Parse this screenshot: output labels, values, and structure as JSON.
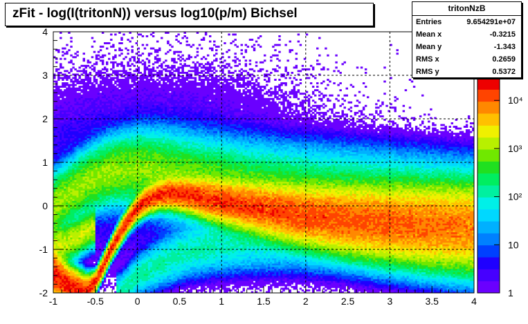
{
  "chart_data": {
    "type": "heatmap",
    "title": "zFit - log(I(tritonN)) versus log10(p/m) Bichsel",
    "xlabel": "",
    "ylabel": "",
    "xlim": [
      -1,
      4
    ],
    "ylim": [
      -2,
      4
    ],
    "x_ticks": [
      "-1",
      "-0.5",
      "0",
      "0.5",
      "1",
      "1.5",
      "2",
      "2.5",
      "3",
      "3.5",
      "4"
    ],
    "y_ticks": [
      "-2",
      "-1",
      "0",
      "1",
      "2",
      "3",
      "4"
    ],
    "grid": true,
    "z_scale": "log",
    "z_range": [
      1,
      30000
    ],
    "colorbar_ticks": [
      {
        "value": 1,
        "label": "1"
      },
      {
        "value": 10,
        "label": "10"
      },
      {
        "value": 100,
        "label": "10²"
      },
      {
        "value": 1000,
        "label": "10³"
      },
      {
        "value": 10000,
        "label": "10⁴"
      }
    ],
    "palette": [
      "#6a00ff",
      "#4600ff",
      "#1f00ff",
      "#0040ff",
      "#0080ff",
      "#00b0ff",
      "#00d8ff",
      "#00f0e8",
      "#00f0a0",
      "#00ee60",
      "#20e020",
      "#70e800",
      "#b8f000",
      "#f0f000",
      "#ffc000",
      "#ff8800",
      "#ff4400",
      "#ee0000"
    ],
    "bands": [
      {
        "name": "main",
        "points": [
          [
            -1.0,
            -1.55,
            0.22
          ],
          [
            -0.8,
            -1.85,
            0.18
          ],
          [
            -0.6,
            -2.0,
            0.15
          ],
          [
            -0.5,
            -1.75,
            0.09
          ],
          [
            -0.4,
            -1.35,
            0.09
          ],
          [
            -0.3,
            -0.95,
            0.09
          ],
          [
            -0.2,
            -0.6,
            0.1
          ],
          [
            -0.1,
            -0.3,
            0.1
          ],
          [
            0.0,
            -0.05,
            0.11
          ],
          [
            0.1,
            0.12,
            0.12
          ],
          [
            0.25,
            0.25,
            0.13
          ],
          [
            0.4,
            0.3,
            0.14
          ],
          [
            0.6,
            0.26,
            0.16
          ],
          [
            0.8,
            0.18,
            0.18
          ],
          [
            1.0,
            0.1,
            0.2
          ],
          [
            1.3,
            0.0,
            0.22
          ],
          [
            1.6,
            -0.1,
            0.25
          ],
          [
            2.0,
            -0.22,
            0.28
          ],
          [
            2.5,
            -0.32,
            0.32
          ],
          [
            3.0,
            -0.4,
            0.35
          ],
          [
            3.5,
            -0.45,
            0.38
          ],
          [
            4.0,
            -0.5,
            0.4
          ]
        ],
        "amp": 4.3
      },
      {
        "name": "upper",
        "points": [
          [
            -1.0,
            0.0,
            0.3
          ],
          [
            -0.6,
            0.55,
            0.3
          ],
          [
            -0.3,
            0.8,
            0.32
          ],
          [
            0.0,
            0.85,
            0.35
          ],
          [
            0.3,
            0.75,
            0.38
          ],
          [
            0.6,
            0.6,
            0.4
          ],
          [
            1.0,
            0.45,
            0.42
          ],
          [
            1.5,
            0.25,
            0.45
          ],
          [
            2.0,
            0.1,
            0.48
          ],
          [
            3.0,
            -0.1,
            0.52
          ],
          [
            4.0,
            -0.3,
            0.55
          ]
        ],
        "amp": 3.0
      },
      {
        "name": "left-blob",
        "points": [
          [
            -1.0,
            -0.9,
            0.22
          ],
          [
            -0.85,
            -0.85,
            0.2
          ],
          [
            -0.7,
            -0.7,
            0.18
          ],
          [
            -0.55,
            -0.5,
            0.18
          ]
        ],
        "amp": 3.2
      },
      {
        "name": "lower-diag",
        "points": [
          [
            -0.2,
            -2.0,
            0.18
          ],
          [
            0.0,
            -1.6,
            0.2
          ],
          [
            0.3,
            -1.3,
            0.24
          ],
          [
            0.6,
            -1.05,
            0.26
          ],
          [
            1.0,
            -0.85,
            0.3
          ],
          [
            1.5,
            -0.7,
            0.34
          ],
          [
            2.0,
            -0.6,
            0.38
          ],
          [
            3.0,
            -0.55,
            0.42
          ]
        ],
        "amp": 2.2
      }
    ]
  },
  "stats": {
    "name": "tritonNzB",
    "rows": [
      {
        "key": "Entries",
        "value": "9.654291e+07"
      },
      {
        "key": "Mean x",
        "value": "-0.3215"
      },
      {
        "key": "Mean y",
        "value": "-1.343"
      },
      {
        "key": "RMS x",
        "value": "0.2659"
      },
      {
        "key": "RMS y",
        "value": "0.5372"
      }
    ]
  }
}
